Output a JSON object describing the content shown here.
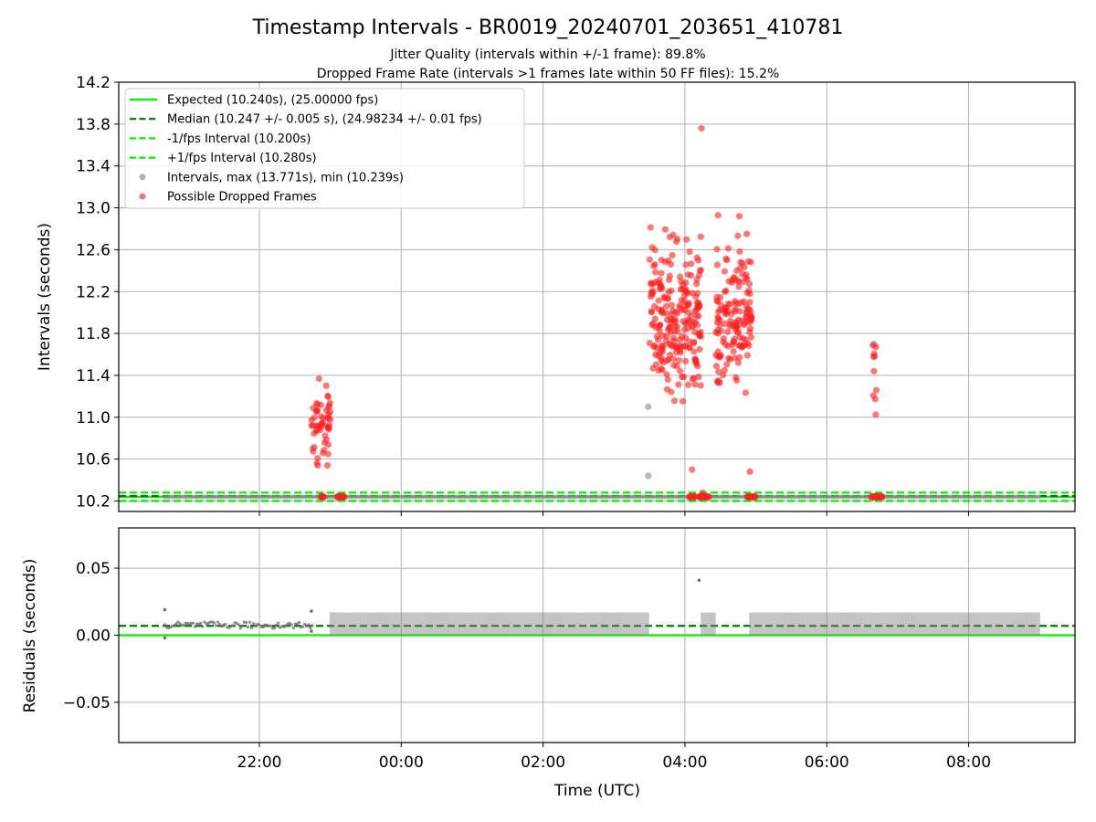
{
  "figure": {
    "title": "Timestamp Intervals - BR0019_20240701_203651_410781",
    "subtitle_1": "Jitter Quality (intervals within +/-1 frame): 89.8%",
    "subtitle_2": "Dropped Frame Rate (intervals >1 frames late within 50 FF files): 15.2%"
  },
  "chart_data": [
    {
      "type": "scatter",
      "name": "intervals",
      "ylabel": "Intervals (seconds)",
      "ylim": [
        10.1,
        14.2
      ],
      "xlim": [
        "20:01",
        "09:30"
      ],
      "y_ticks": [
        10.2,
        10.6,
        11.0,
        11.4,
        11.8,
        12.2,
        12.6,
        13.0,
        13.4,
        13.8,
        14.2
      ],
      "y_tick_labels": [
        "10.2",
        "10.6",
        "11.0",
        "11.4",
        "11.8",
        "12.2",
        "12.6",
        "13.0",
        "13.4",
        "13.8",
        "14.2"
      ],
      "grid": true,
      "legend_position": "top-left",
      "legend": [
        {
          "label": "Expected (10.240s), (25.00000 fps)",
          "style": "solid",
          "color": "#00ee00"
        },
        {
          "label": "Median (10.247 +/- 0.005 s), (24.98234 +/- 0.01 fps)",
          "style": "dashed",
          "color": "#007a00"
        },
        {
          "label": "-1/fps Interval (10.200s)",
          "style": "dashed",
          "color": "#00ee00"
        },
        {
          "label": "+1/fps Interval (10.280s)",
          "style": "dashed",
          "color": "#00ee00"
        },
        {
          "label": "Intervals, max (13.771s), min (10.239s)",
          "style": "marker",
          "color": "#909090"
        },
        {
          "label": "Possible Dropped Frames",
          "style": "marker",
          "color": "#ff3333"
        }
      ],
      "horizontal_lines": [
        {
          "y": 10.24,
          "style": "solid",
          "color": "#00ee00"
        },
        {
          "y": 10.247,
          "style": "dashed",
          "color": "#007a00"
        },
        {
          "y": 10.2,
          "style": "dashed",
          "color": "#00ee00"
        },
        {
          "y": 10.28,
          "style": "dashed",
          "color": "#00ee00"
        }
      ],
      "normal_interval_value": 10.24,
      "normal_interval_range": [
        "20:40",
        "09:00"
      ],
      "gray_outliers": [
        {
          "x": "22:45",
          "y": 10.7
        },
        {
          "x": "03:29",
          "y": 11.1
        },
        {
          "x": "03:29",
          "y": 10.44
        },
        {
          "x": "04:29",
          "y": 11.35
        },
        {
          "x": "06:40",
          "y": 11.7
        }
      ],
      "dropped_frame_clusters": [
        {
          "x_start": "22:44",
          "x_end": "23:00",
          "y_min": 10.35,
          "y_max": 11.57,
          "count": 55
        },
        {
          "x_start": "03:30",
          "x_end": "04:14",
          "y_min": 10.95,
          "y_max": 12.95,
          "count": 230
        },
        {
          "x_start": "04:26",
          "x_end": "04:57",
          "y_min": 10.95,
          "y_max": 12.95,
          "count": 150
        },
        {
          "x_start": "06:39",
          "x_end": "06:42",
          "y_min": 10.68,
          "y_max": 12.05,
          "count": 10
        }
      ],
      "dropped_frame_extra_points": [
        {
          "x": "04:14",
          "y": 13.76
        },
        {
          "x": "04:04",
          "y": 12.58
        },
        {
          "x": "04:28",
          "y": 12.93
        },
        {
          "x": "04:46",
          "y": 12.92
        },
        {
          "x": "04:06",
          "y": 10.5
        },
        {
          "x": "04:55",
          "y": 10.48
        },
        {
          "x": "04:15",
          "y": 10.28
        }
      ],
      "dropped_frame_baseline_runs": [
        {
          "x_start": "22:52",
          "x_end": "22:55",
          "y": 10.24
        },
        {
          "x_start": "23:06",
          "x_end": "23:12",
          "y": 10.24
        },
        {
          "x_start": "04:04",
          "x_end": "04:08",
          "y": 10.24
        },
        {
          "x_start": "04:12",
          "x_end": "04:20",
          "y": 10.24
        },
        {
          "x_start": "04:53",
          "x_end": "05:00",
          "y": 10.24
        },
        {
          "x_start": "06:38",
          "x_end": "06:47",
          "y": 10.24
        }
      ]
    },
    {
      "type": "scatter",
      "name": "residuals",
      "xlabel": "Time (UTC)",
      "ylabel": "Residuals (seconds)",
      "ylim": [
        -0.08,
        0.08
      ],
      "xlim": [
        "20:01",
        "09:30"
      ],
      "y_ticks": [
        -0.05,
        0.0,
        0.05
      ],
      "y_tick_labels": [
        "−0.05",
        "0.00",
        "0.05"
      ],
      "x_ticks": [
        "22:00",
        "00:00",
        "02:00",
        "04:00",
        "06:00",
        "08:00"
      ],
      "x_tick_labels": [
        "22:00",
        "00:00",
        "02:00",
        "04:00",
        "06:00",
        "08:00"
      ],
      "grid": true,
      "horizontal_lines": [
        {
          "y": 0.0,
          "style": "solid",
          "color": "#00ee00"
        },
        {
          "y": 0.007,
          "style": "dashed",
          "color": "#007a00"
        }
      ],
      "segments": [
        {
          "x_start": "20:40",
          "x_end": "22:45",
          "y_min": 0.005,
          "y_max": 0.01
        },
        {
          "x_start": "23:00",
          "x_end": "03:30",
          "y_min": 0.0,
          "y_max": 0.017
        },
        {
          "x_start": "04:14",
          "x_end": "04:26",
          "y_min": 0.0,
          "y_max": 0.017
        },
        {
          "x_start": "04:55",
          "x_end": "09:00",
          "y_min": 0.0,
          "y_max": 0.017
        }
      ],
      "outliers": [
        {
          "x": "20:40",
          "y": 0.019
        },
        {
          "x": "20:40",
          "y": -0.002
        },
        {
          "x": "22:44",
          "y": 0.018
        },
        {
          "x": "22:44",
          "y": 0.003
        },
        {
          "x": "04:12",
          "y": 0.041
        }
      ]
    }
  ]
}
